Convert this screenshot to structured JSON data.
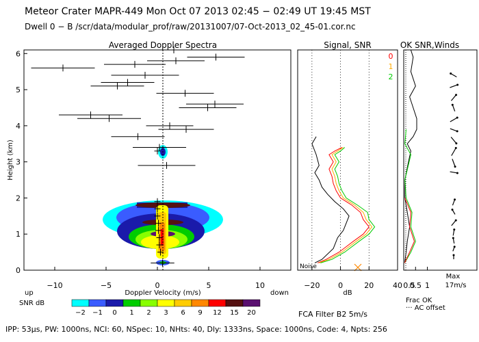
{
  "header": {
    "title": "Meteor Crater   MAPR-449   Mon Oct 07 2013 02:45 − 02:49 UT 19:45 MST",
    "subtitle": "Dwell   0 −   B    /scr/data/modular_prof/raw/20131007/07-Oct-2013_02_45-01.cor.nc"
  },
  "footer": {
    "params": "IPP: 53μs,  PW: 1000ns,  NCI: 60,  NSpec: 10, NHts: 40,  Dly: 1333ns,  Space: 1000ns,  Code: 4,  Npts: 256",
    "filter": "FCA Filter B2   5m/s"
  },
  "chart_data": [
    {
      "type": "heatmap",
      "title": "Averaged Doppler Spectra",
      "xlabel": "Doppler Velocity (m/s)",
      "ylabel": "Height (km)",
      "xlim": [
        -13,
        13
      ],
      "ylim": [
        0,
        6.1
      ],
      "xticks": [
        -10,
        -5,
        0,
        5,
        10
      ],
      "yticks": [
        0,
        1,
        2,
        3,
        4,
        5,
        6
      ],
      "x_side_labels": {
        "left": "up",
        "right": "down"
      },
      "colorbar": {
        "label": "SNR dB",
        "ticks": [
          "−2",
          "−1",
          "0",
          "1",
          "2",
          "3",
          "6",
          "9",
          "12",
          "15",
          "20"
        ],
        "colors": [
          "#00ffff",
          "#3a5cff",
          "#1a1aaa",
          "#00cc00",
          "#88ff00",
          "#ffff00",
          "#ffcc00",
          "#ff8800",
          "#ff0000",
          "#551111",
          "#5a1070"
        ]
      },
      "centroid_marks": [
        {
          "h": 0.2,
          "v": 0.5,
          "w": 2.3
        },
        {
          "h": 0.5,
          "v": 0.3,
          "w": 0.6
        },
        {
          "h": 0.7,
          "v": 0.2,
          "w": 0.6
        },
        {
          "h": 0.9,
          "v": 0.2,
          "w": 0.6
        },
        {
          "h": 1.1,
          "v": 0.1,
          "w": 0.6
        },
        {
          "h": 1.3,
          "v": 0.1,
          "w": 0.6
        },
        {
          "h": 1.5,
          "v": 0.0,
          "w": 0.6
        },
        {
          "h": 1.7,
          "v": 0.0,
          "w": 0.6
        },
        {
          "h": 1.9,
          "v": 0.0,
          "w": 0.6
        },
        {
          "h": 2.9,
          "v": 0.9,
          "w": 5.6
        },
        {
          "h": 3.3,
          "v": 0.0,
          "w": 0.6
        },
        {
          "h": 3.4,
          "v": 0.2,
          "w": 5.2
        },
        {
          "h": 3.7,
          "v": -1.9,
          "w": 5.2
        },
        {
          "h": 3.9,
          "v": 2.8,
          "w": 5.4
        },
        {
          "h": 4.0,
          "v": 1.2,
          "w": 4.6
        },
        {
          "h": 4.2,
          "v": -4.7,
          "w": 6.2
        },
        {
          "h": 4.3,
          "v": -6.5,
          "w": 6.2
        },
        {
          "h": 4.5,
          "v": 4.9,
          "w": 5.6
        },
        {
          "h": 4.6,
          "v": 5.6,
          "w": 5.6
        },
        {
          "h": 4.9,
          "v": 2.7,
          "w": 5.6
        },
        {
          "h": 5.1,
          "v": -3.9,
          "w": 5.2
        },
        {
          "h": 5.2,
          "v": -2.9,
          "w": 5.2
        },
        {
          "h": 5.4,
          "v": -1.2,
          "w": 6.6
        },
        {
          "h": 5.6,
          "v": -9.2,
          "w": 6.2
        },
        {
          "h": 5.7,
          "v": -2.2,
          "w": 6.0
        },
        {
          "h": 5.8,
          "v": 1.8,
          "w": 5.6
        },
        {
          "h": 5.9,
          "v": 5.7,
          "w": 5.6
        },
        {
          "h": 6.1,
          "v": 1.6,
          "w": 5.6
        }
      ]
    },
    {
      "type": "line",
      "title": "Signal, SNR",
      "xlabel": "dB",
      "xlim": [
        -30,
        40
      ],
      "xticks": [
        -20,
        0,
        20,
        40
      ],
      "ylim": [
        0,
        6.1
      ],
      "annotations": [
        "Noise"
      ],
      "series_labels": [
        "0",
        "1",
        "2"
      ],
      "series_colors": [
        "#ff0000",
        "#ffaa00",
        "#00cc00"
      ],
      "series": [
        {
          "color": "#000000",
          "points": [
            [
              -18,
              0.2
            ],
            [
              -13,
              0.3
            ],
            [
              -5,
              0.6
            ],
            [
              -2,
              0.9
            ],
            [
              2,
              1.1
            ],
            [
              4,
              1.3
            ],
            [
              6,
              1.5
            ],
            [
              2,
              1.7
            ],
            [
              -4,
              1.9
            ],
            [
              -9,
              2.1
            ],
            [
              -13,
              2.3
            ],
            [
              -15,
              2.5
            ],
            [
              -18,
              2.7
            ],
            [
              -15,
              2.9
            ],
            [
              -17,
              3.2
            ],
            [
              -20,
              3.5
            ],
            [
              -17,
              3.7
            ]
          ]
        },
        {
          "color": "#ff0000",
          "points": [
            [
              -16,
              0.2
            ],
            [
              -10,
              0.3
            ],
            [
              -1,
              0.5
            ],
            [
              9,
              0.8
            ],
            [
              16,
              1.0
            ],
            [
              20,
              1.2
            ],
            [
              16,
              1.4
            ],
            [
              14,
              1.6
            ],
            [
              8,
              1.8
            ],
            [
              0,
              2.0
            ],
            [
              -3,
              2.2
            ],
            [
              -5,
              2.4
            ],
            [
              -6,
              2.6
            ],
            [
              -8,
              2.8
            ],
            [
              -5,
              3.0
            ],
            [
              -8,
              3.2
            ],
            [
              -4,
              3.3
            ],
            [
              1,
              3.4
            ]
          ]
        },
        {
          "color": "#ffaa00",
          "points": [
            [
              -15,
              0.2
            ],
            [
              -8,
              0.3
            ],
            [
              1,
              0.5
            ],
            [
              11,
              0.8
            ],
            [
              18,
              1.0
            ],
            [
              22,
              1.2
            ],
            [
              18,
              1.4
            ],
            [
              16,
              1.6
            ],
            [
              10,
              1.8
            ],
            [
              2,
              2.0
            ],
            [
              -1,
              2.2
            ],
            [
              -3,
              2.4
            ],
            [
              -4,
              2.6
            ],
            [
              -6,
              2.8
            ],
            [
              -3,
              3.0
            ],
            [
              -6,
              3.2
            ],
            [
              -2,
              3.3
            ],
            [
              2,
              3.4
            ]
          ]
        },
        {
          "color": "#00cc00",
          "points": [
            [
              -14,
              0.2
            ],
            [
              -6,
              0.3
            ],
            [
              3,
              0.5
            ],
            [
              13,
              0.8
            ],
            [
              20,
              1.0
            ],
            [
              24,
              1.2
            ],
            [
              20,
              1.4
            ],
            [
              19,
              1.6
            ],
            [
              12,
              1.8
            ],
            [
              4,
              2.0
            ],
            [
              1,
              2.2
            ],
            [
              -1,
              2.4
            ],
            [
              -2,
              2.6
            ],
            [
              -4,
              2.8
            ],
            [
              -1,
              3.0
            ],
            [
              -4,
              3.2
            ],
            [
              0,
              3.3
            ],
            [
              3,
              3.4
            ]
          ]
        }
      ]
    },
    {
      "type": "line",
      "title": "OK SNR,Winds",
      "xlabel": "Frac OK",
      "legend_note": "AC offset",
      "xlim": [
        0,
        1.1
      ],
      "xticks": [
        0.5,
        1
      ],
      "xtick_labels": [
        "0.5",
        "1"
      ],
      "left_label": "0.5",
      "ylim": [
        0,
        6.1
      ],
      "series": [
        {
          "color": "#000000",
          "points": [
            [
              0.04,
              0.2
            ],
            [
              0.1,
              0.5
            ],
            [
              0.15,
              0.8
            ],
            [
              0.25,
              1.2
            ],
            [
              0.15,
              1.6
            ],
            [
              0.05,
              2.0
            ],
            [
              0.05,
              2.5
            ],
            [
              0.2,
              3.0
            ],
            [
              0.3,
              3.3
            ],
            [
              0.15,
              3.5
            ],
            [
              0.4,
              3.7
            ],
            [
              0.55,
              3.9
            ],
            [
              0.55,
              4.2
            ],
            [
              0.4,
              4.5
            ],
            [
              0.25,
              4.8
            ],
            [
              0.5,
              5.1
            ],
            [
              0.3,
              5.5
            ],
            [
              0.4,
              5.9
            ],
            [
              0.3,
              6.1
            ]
          ]
        },
        {
          "color": "#00cc00",
          "points": [
            [
              0.04,
              0.2
            ],
            [
              0.3,
              0.5
            ],
            [
              0.5,
              0.8
            ],
            [
              0.3,
              1.2
            ],
            [
              0.35,
              1.6
            ],
            [
              0.1,
              2.0
            ],
            [
              0.05,
              2.5
            ],
            [
              0.3,
              3.2
            ],
            [
              0.05,
              3.5
            ],
            [
              0.1,
              3.9
            ]
          ]
        },
        {
          "color": "#ff0000",
          "points": [
            [
              0.04,
              0.2
            ],
            [
              0.25,
              0.5
            ],
            [
              0.45,
              0.8
            ],
            [
              0.25,
              1.2
            ],
            [
              0.3,
              1.6
            ],
            [
              0.05,
              2.0
            ]
          ]
        }
      ]
    }
  ],
  "wind_scale": {
    "label": "Max",
    "value": "17m/s"
  }
}
